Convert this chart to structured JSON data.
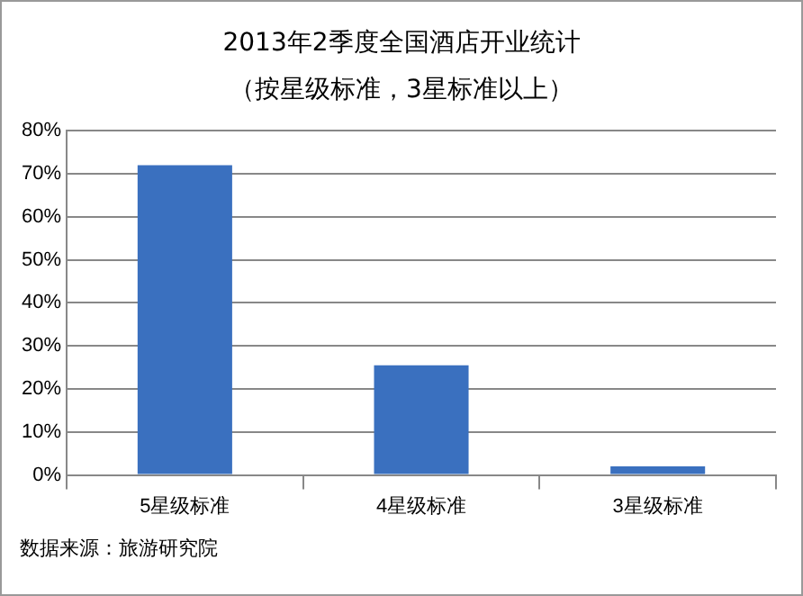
{
  "chart_data": {
    "type": "bar",
    "title": "2013年2季度全国酒店开业统计",
    "subtitle": "（按星级标准，3星标准以上）",
    "categories": [
      "5星级标准",
      "4星级标准",
      "3星级标准"
    ],
    "values": [
      72,
      25.5,
      2
    ],
    "color": "#3a70bf",
    "ylim": [
      0,
      80
    ],
    "yticks": [
      {
        "value": 0,
        "label": "0%"
      },
      {
        "value": 10,
        "label": "10%"
      },
      {
        "value": 20,
        "label": "20%"
      },
      {
        "value": 30,
        "label": "30%"
      },
      {
        "value": 40,
        "label": "40%"
      },
      {
        "value": 50,
        "label": "50%"
      },
      {
        "value": 60,
        "label": "60%"
      },
      {
        "value": 70,
        "label": "70%"
      },
      {
        "value": 80,
        "label": "80%"
      }
    ],
    "grid": "y",
    "legend": false,
    "annotations": [
      "数据来源：旅游研究院"
    ]
  }
}
